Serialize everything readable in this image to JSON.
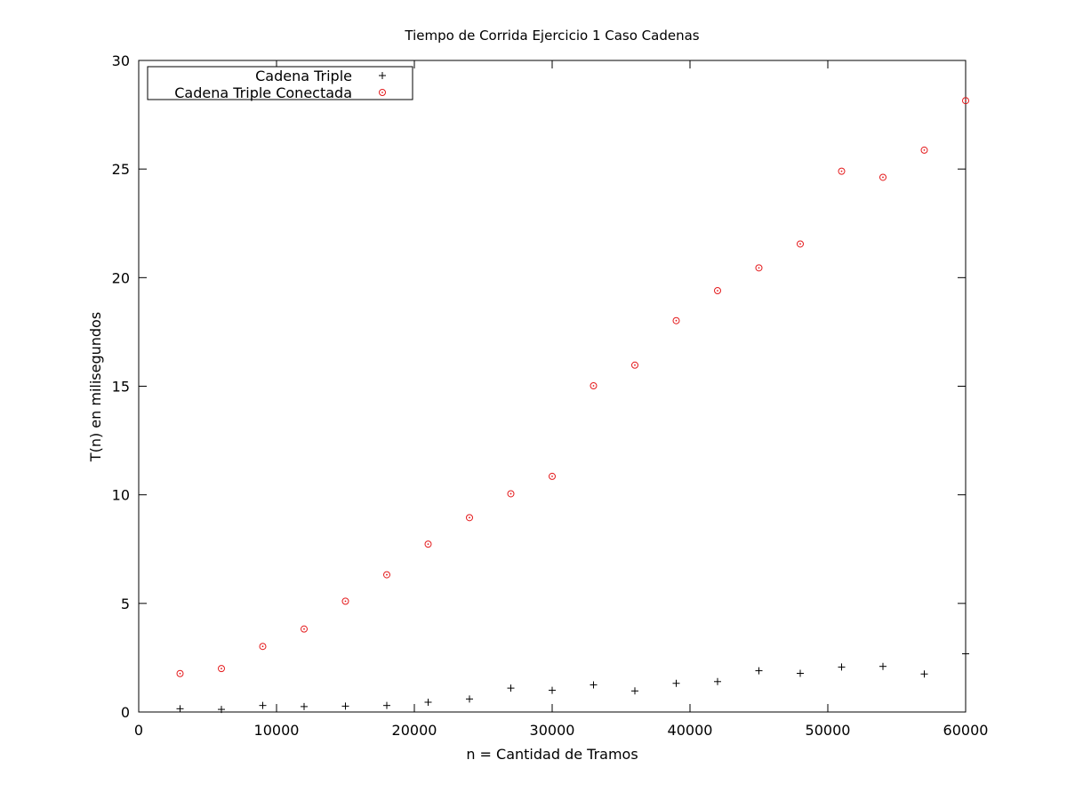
{
  "chart_data": {
    "type": "scatter",
    "title": "Tiempo de Corrida Ejercicio 1 Caso Cadenas",
    "xlabel": "n = Cantidad de Tramos",
    "ylabel": "T(n) en milisegundos",
    "xlim": [
      0,
      60000
    ],
    "ylim": [
      0,
      30
    ],
    "xticks": [
      0,
      10000,
      20000,
      30000,
      40000,
      50000,
      60000
    ],
    "yticks": [
      0,
      5,
      10,
      15,
      20,
      25,
      30
    ],
    "grid": false,
    "legend_position": "top-left",
    "x": [
      3000,
      6000,
      9000,
      12000,
      15000,
      18000,
      21000,
      24000,
      27000,
      30000,
      33000,
      36000,
      39000,
      42000,
      45000,
      48000,
      51000,
      54000,
      57000,
      60000
    ],
    "series": [
      {
        "name": "Cadena Triple",
        "marker": "plus",
        "color": "#000000",
        "values": [
          0.15,
          0.12,
          0.3,
          0.25,
          0.27,
          0.3,
          0.45,
          0.6,
          1.1,
          1.0,
          1.25,
          0.97,
          1.32,
          1.4,
          1.9,
          1.78,
          2.07,
          2.1,
          1.75,
          2.68
        ]
      },
      {
        "name": "Cadena Triple Conectada",
        "marker": "circle-dot",
        "color": "#e41a1c",
        "values": [
          1.77,
          2.0,
          3.02,
          3.82,
          5.1,
          6.32,
          7.73,
          8.95,
          10.05,
          10.85,
          15.02,
          15.97,
          18.02,
          19.4,
          20.45,
          21.55,
          24.9,
          24.62,
          25.87,
          28.15
        ]
      }
    ]
  }
}
